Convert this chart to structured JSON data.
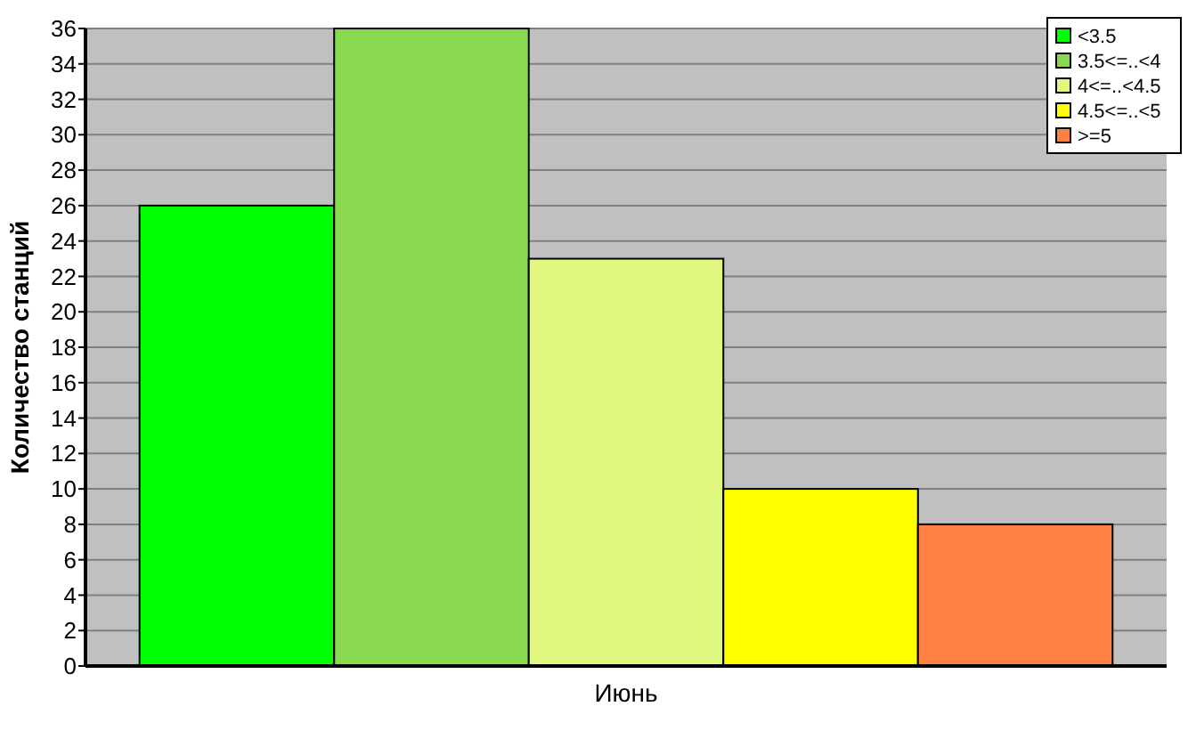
{
  "chart_data": {
    "type": "bar",
    "ylabel": "Количество станций",
    "categories": [
      "Июнь"
    ],
    "series": [
      {
        "name": "<3.5",
        "color": "#00ff00",
        "values": [
          26
        ]
      },
      {
        "name": "3.5<=..<4",
        "color": "#88d850",
        "values": [
          36
        ]
      },
      {
        "name": "4<=..<4.5",
        "color": "#e0f880",
        "values": [
          23
        ]
      },
      {
        "name": "4.5<=..<5",
        "color": "#ffff00",
        "values": [
          10
        ]
      },
      {
        "name": ">=5",
        "color": "#ff8040",
        "values": [
          8
        ]
      }
    ],
    "ylim": [
      0,
      36
    ],
    "yticks": [
      0,
      2,
      4,
      6,
      8,
      10,
      12,
      14,
      16,
      18,
      20,
      22,
      24,
      26,
      28,
      30,
      32,
      34,
      36
    ],
    "grid": "y",
    "legend": "top right"
  }
}
